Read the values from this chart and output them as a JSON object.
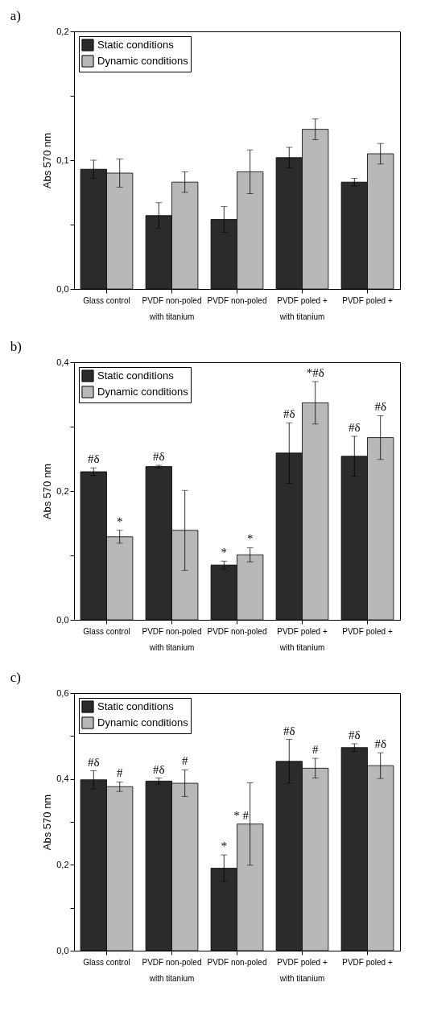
{
  "chart_data": [
    {
      "type": "bar",
      "title": "a)",
      "ylabel": "Abs 570 nm",
      "legend": "top left",
      "categories": [
        "Glass control",
        "PVDF non-poled\nwith titanium",
        "PVDF non-poled",
        "PVDF poled +\nwith titanium",
        "PVDF poled +"
      ],
      "series": [
        {
          "name": "Static conditions",
          "color": "#2b2b2b",
          "values": [
            0.093,
            0.057,
            0.054,
            0.102,
            0.083
          ],
          "errors": [
            0.007,
            0.01,
            0.01,
            0.008,
            0.003
          ]
        },
        {
          "name": "Dynamic conditions",
          "color": "#b8b8b8",
          "values": [
            0.09,
            0.083,
            0.091,
            0.124,
            0.105
          ],
          "errors": [
            0.011,
            0.008,
            0.017,
            0.008,
            0.008
          ]
        }
      ],
      "ylim": [
        0,
        0.2
      ],
      "yticks": [
        {
          "value": 0,
          "label": "0,0"
        },
        {
          "value": 0.05,
          "label": null
        },
        {
          "value": 0.1,
          "label": "0,1"
        },
        {
          "value": 0.15,
          "label": null
        },
        {
          "value": 0.2,
          "label": "0,2"
        }
      ]
    },
    {
      "type": "bar",
      "title": "b)",
      "ylabel": "Abs 570 nm",
      "legend": "top left",
      "categories": [
        "Glass control",
        "PVDF non-poled\nwith titanium",
        "PVDF non-poled",
        "PVDF poled +\nwith titanium",
        "PVDF poled +"
      ],
      "series": [
        {
          "name": "Static conditions",
          "color": "#2b2b2b",
          "values": [
            0.23,
            0.238,
            0.085,
            0.259,
            0.254
          ],
          "errors": [
            0.006,
            0.002,
            0.006,
            0.047,
            0.031
          ],
          "value_labels": [
            "#δ",
            "#δ",
            "*",
            "#δ",
            "#δ"
          ]
        },
        {
          "name": "Dynamic conditions",
          "color": "#b8b8b8",
          "values": [
            0.129,
            0.139,
            0.101,
            0.337,
            0.283
          ],
          "errors": [
            0.01,
            0.062,
            0.011,
            0.033,
            0.034
          ],
          "value_labels": [
            "*",
            null,
            "*",
            "*#δ",
            "#δ"
          ]
        }
      ],
      "ylim": [
        0,
        0.4
      ],
      "yticks": [
        {
          "value": 0,
          "label": "0,0"
        },
        {
          "value": 0.1,
          "label": null
        },
        {
          "value": 0.2,
          "label": "0,2"
        },
        {
          "value": 0.3,
          "label": null
        },
        {
          "value": 0.4,
          "label": "0,4"
        }
      ]
    },
    {
      "type": "bar",
      "title": "c)",
      "ylabel": "Abs 570 nm",
      "legend": "top left",
      "categories": [
        "Glass control",
        "PVDF non-poled\nwith titanium",
        "PVDF non-poled",
        "PVDF poled +\nwith titanium",
        "PVDF poled +"
      ],
      "series": [
        {
          "name": "Static conditions",
          "color": "#2b2b2b",
          "values": [
            0.398,
            0.395,
            0.192,
            0.441,
            0.473
          ],
          "errors": [
            0.021,
            0.007,
            0.031,
            0.051,
            0.009
          ],
          "value_labels": [
            "#δ",
            "#δ",
            "*",
            "#δ",
            "#δ"
          ]
        },
        {
          "name": "Dynamic conditions",
          "color": "#b8b8b8",
          "values": [
            0.382,
            0.39,
            0.295,
            0.425,
            0.431
          ],
          "errors": [
            0.011,
            0.031,
            0.096,
            0.023,
            0.03
          ],
          "value_labels": [
            "#",
            "#",
            "* #",
            "#",
            "#δ"
          ]
        }
      ],
      "ylim": [
        0,
        0.6
      ],
      "yticks": [
        {
          "value": 0,
          "label": "0,0"
        },
        {
          "value": 0.1,
          "label": null
        },
        {
          "value": 0.2,
          "label": "0,2"
        },
        {
          "value": 0.3,
          "label": null
        },
        {
          "value": 0.4,
          "label": "0,4"
        },
        {
          "value": 0.5,
          "label": null
        },
        {
          "value": 0.6,
          "label": "0,6"
        }
      ]
    }
  ]
}
